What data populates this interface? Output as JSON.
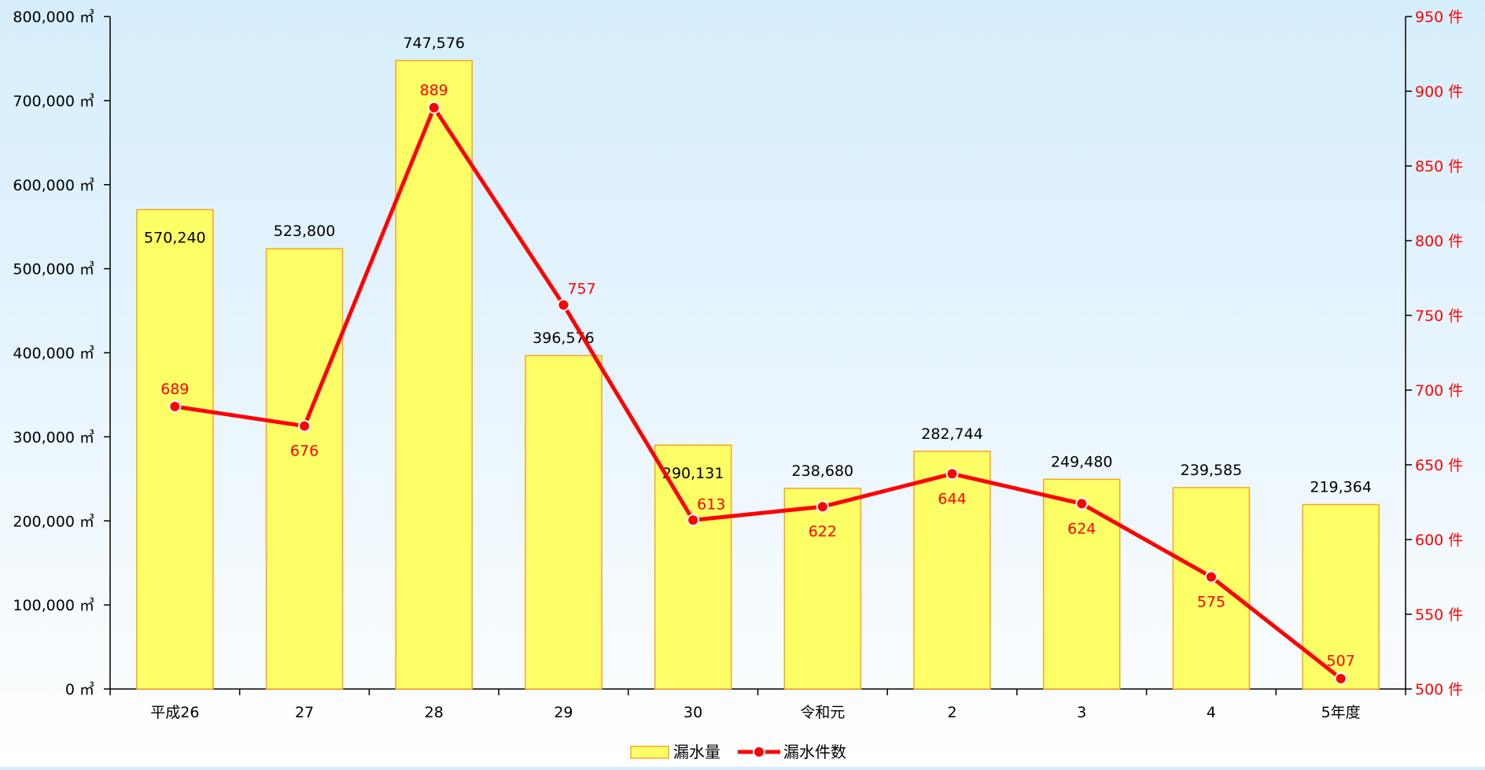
{
  "chart_data": {
    "type": "bar",
    "categories": [
      "平成26",
      "27",
      "28",
      "29",
      "30",
      "令和元",
      "2",
      "3",
      "4",
      "5年度"
    ],
    "series": [
      {
        "name": "漏水量",
        "type": "bar",
        "axis": "left",
        "values": [
          570240,
          523800,
          747576,
          396576,
          290131,
          238680,
          282744,
          249480,
          239585,
          219364
        ],
        "value_labels": [
          "570,240",
          "523,800",
          "747,576",
          "396,576",
          "290,131",
          "238,680",
          "282,744",
          "249,480",
          "239,585",
          "219,364"
        ]
      },
      {
        "name": "漏水件数",
        "type": "line",
        "axis": "right",
        "values": [
          689,
          676,
          889,
          757,
          613,
          622,
          644,
          624,
          575,
          507
        ],
        "value_labels": [
          "689",
          "676",
          "889",
          "757",
          "613",
          "622",
          "644",
          "624",
          "575",
          "507"
        ]
      }
    ],
    "y_left": {
      "min": 0,
      "max": 800000,
      "ticks": [
        0,
        100000,
        200000,
        300000,
        400000,
        500000,
        600000,
        700000,
        800000
      ],
      "tick_labels": [
        "0 ㎥",
        "100,000 ㎥",
        "200,000 ㎥",
        "300,000 ㎥",
        "400,000 ㎥",
        "500,000 ㎥",
        "600,000 ㎥",
        "700,000 ㎥",
        "800,000 ㎥"
      ]
    },
    "y_right": {
      "min": 500,
      "max": 950,
      "ticks": [
        500,
        550,
        600,
        650,
        700,
        750,
        800,
        850,
        900,
        950
      ],
      "tick_labels": [
        "500 件",
        "550 件",
        "600 件",
        "650 件",
        "700 件",
        "750 件",
        "800 件",
        "850 件",
        "900 件",
        "950 件"
      ]
    },
    "legend_position": "bottom-center",
    "grid": false
  },
  "colors": {
    "bar_fill": "#ffff66",
    "bar_stroke": "#f5a623",
    "line": "#ff0000",
    "axis": "#000000",
    "right_axis_text": "#ff0000"
  }
}
